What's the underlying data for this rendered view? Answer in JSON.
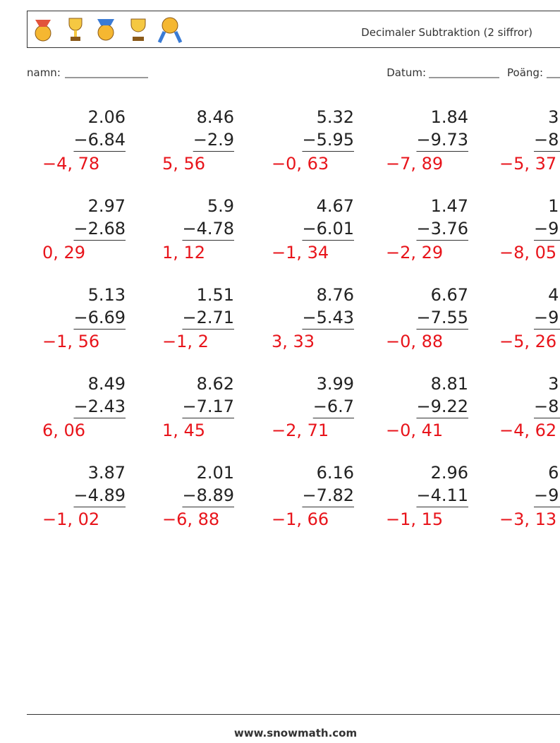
{
  "header": {
    "title": "Decimaler Subtraktion (2 siffror)",
    "name_label": "namn:",
    "date_label": "Datum:",
    "score_label": "Poäng:"
  },
  "problems": [
    {
      "top": "2.06",
      "bottom": "−6.84",
      "answer": "−4, 78"
    },
    {
      "top": "8.46",
      "bottom": "−2.9",
      "answer": "5, 56"
    },
    {
      "top": "5.32",
      "bottom": "−5.95",
      "answer": "−0, 63"
    },
    {
      "top": "1.84",
      "bottom": "−9.73",
      "answer": "−7, 89"
    },
    {
      "top": "3.",
      "bottom": "−8.",
      "answer": "−5, 37"
    },
    {
      "top": "2.97",
      "bottom": "−2.68",
      "answer": "0, 29"
    },
    {
      "top": "5.9",
      "bottom": "−4.78",
      "answer": "1, 12"
    },
    {
      "top": "4.67",
      "bottom": "−6.01",
      "answer": "−1, 34"
    },
    {
      "top": "1.47",
      "bottom": "−3.76",
      "answer": "−2, 29"
    },
    {
      "top": "1.",
      "bottom": "−9.",
      "answer": "−8, 05"
    },
    {
      "top": "5.13",
      "bottom": "−6.69",
      "answer": "−1, 56"
    },
    {
      "top": "1.51",
      "bottom": "−2.71",
      "answer": "−1, 2"
    },
    {
      "top": "8.76",
      "bottom": "−5.43",
      "answer": "3, 33"
    },
    {
      "top": "6.67",
      "bottom": "−7.55",
      "answer": "−0, 88"
    },
    {
      "top": "4.",
      "bottom": "−9.",
      "answer": "−5, 26"
    },
    {
      "top": "8.49",
      "bottom": "−2.43",
      "answer": "6, 06"
    },
    {
      "top": "8.62",
      "bottom": "−7.17",
      "answer": "1, 45"
    },
    {
      "top": "3.99",
      "bottom": "−6.7",
      "answer": "−2, 71"
    },
    {
      "top": "8.81",
      "bottom": "−9.22",
      "answer": "−0, 41"
    },
    {
      "top": "3.",
      "bottom": "−8.",
      "answer": "−4, 62"
    },
    {
      "top": "3.87",
      "bottom": "−4.89",
      "answer": "−1, 02"
    },
    {
      "top": "2.01",
      "bottom": "−8.89",
      "answer": "−6, 88"
    },
    {
      "top": "6.16",
      "bottom": "−7.82",
      "answer": "−1, 66"
    },
    {
      "top": "2.96",
      "bottom": "−4.11",
      "answer": "−1, 15"
    },
    {
      "top": "6.",
      "bottom": "−9.",
      "answer": "−3, 13"
    }
  ],
  "footer": {
    "site": "www.snowmath.com"
  }
}
